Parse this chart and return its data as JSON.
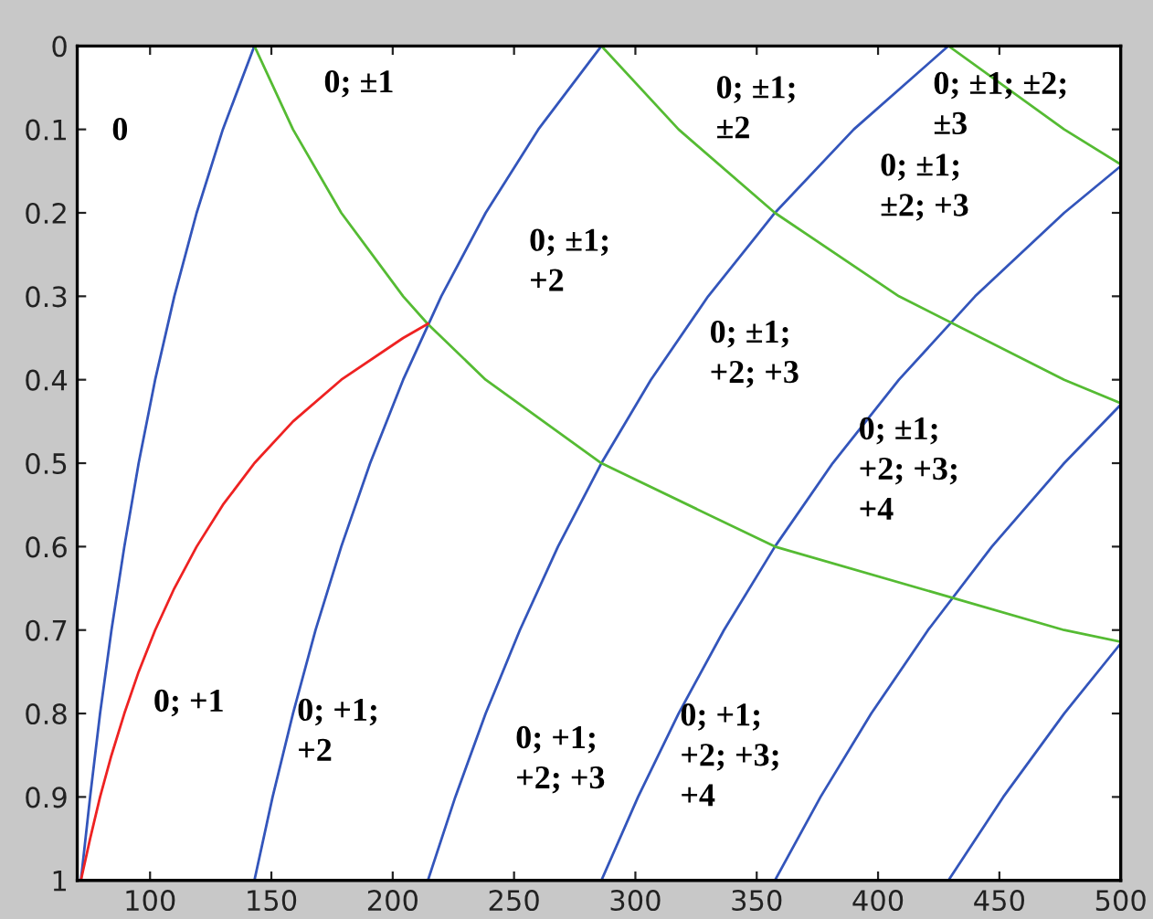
{
  "chart_data": {
    "type": "line",
    "xlim": [
      70,
      500
    ],
    "ylim": [
      1,
      0
    ],
    "xticks": [
      100,
      150,
      200,
      250,
      300,
      350,
      400,
      450,
      500
    ],
    "yticks": [
      0,
      0.1,
      0.2,
      0.3,
      0.4,
      0.5,
      0.6,
      0.7,
      0.8,
      0.9,
      1
    ],
    "grid": false,
    "marker": "none",
    "line_style": "solid",
    "series": [
      {
        "color": "#3355bb",
        "x": [
          143,
          130,
          119.2,
          110,
          102.1,
          95.3,
          89.4,
          84.1,
          79.4,
          75.3,
          71.5
        ],
        "values": [
          0,
          0.1,
          0.2,
          0.3,
          0.4,
          0.5,
          0.6,
          0.7,
          0.8,
          0.9,
          1
        ]
      },
      {
        "color": "#3355bb",
        "x": [
          286,
          260,
          238.3,
          220,
          204.3,
          190.7,
          178.8,
          168.2,
          158.9,
          150.5,
          143
        ],
        "values": [
          0,
          0.1,
          0.2,
          0.3,
          0.4,
          0.5,
          0.6,
          0.7,
          0.8,
          0.9,
          1
        ]
      },
      {
        "color": "#3355bb",
        "x": [
          429,
          390,
          357.5,
          330,
          306.4,
          286,
          268.1,
          252.4,
          238.3,
          225.8,
          214.5
        ],
        "values": [
          0,
          0.1,
          0.2,
          0.3,
          0.4,
          0.5,
          0.6,
          0.7,
          0.8,
          0.9,
          1
        ]
      },
      {
        "color": "#3355bb",
        "x": [
          500,
          476.7,
          440,
          408.6,
          381.3,
          357.5,
          336.5,
          317.8,
          301.1,
          286
        ],
        "values": [
          0.144,
          0.2,
          0.3,
          0.4,
          0.5,
          0.6,
          0.7,
          0.8,
          0.9,
          1
        ]
      },
      {
        "color": "#3355bb",
        "x": [
          500,
          476.7,
          446.9,
          420.6,
          397.2,
          376.3,
          357.5
        ],
        "values": [
          0.43,
          0.5,
          0.6,
          0.7,
          0.8,
          0.9,
          1
        ]
      },
      {
        "color": "#3355bb",
        "x": [
          500,
          476.7,
          451.6,
          429
        ],
        "values": [
          0.716,
          0.8,
          0.9,
          1
        ]
      },
      {
        "color": "#55bb33",
        "x": [
          143,
          158.9,
          178.8,
          204.3,
          214.4,
          238.3,
          286,
          357.5,
          476.7,
          500
        ],
        "values": [
          0,
          0.1,
          0.2,
          0.3,
          0.333,
          0.4,
          0.5,
          0.6,
          0.7,
          0.714
        ]
      },
      {
        "color": "#55bb33",
        "x": [
          286,
          317.8,
          357.5,
          408.6,
          476.7,
          500
        ],
        "values": [
          0,
          0.1,
          0.2,
          0.3,
          0.4,
          0.428
        ]
      },
      {
        "color": "#55bb33",
        "x": [
          429,
          476.7,
          500
        ],
        "values": [
          0,
          0.1,
          0.142
        ]
      },
      {
        "color": "#ee2222",
        "x": [
          71.5,
          75.3,
          79.4,
          84.1,
          89.4,
          95.3,
          102.1,
          110,
          119.2,
          130,
          143,
          158.9,
          178.8,
          204.3,
          214.5
        ],
        "values": [
          1,
          0.95,
          0.9,
          0.85,
          0.8,
          0.75,
          0.7,
          0.65,
          0.6,
          0.55,
          0.5,
          0.45,
          0.4,
          0.35,
          0.333
        ]
      }
    ],
    "annotations": [
      "0",
      "0; ±1",
      "0; ±1;\n±2",
      "0; ±1; ±2;\n±3",
      "0; ±1;\n±2; +3",
      "0; ±1;\n+2",
      "0; ±1;\n+2; +3",
      "0; ±1;\n+2; +3;\n+4",
      "0; +1",
      "0; +1;\n+2",
      "0; +1;\n+2; +3",
      "0; +1;\n+2; +3;\n+4"
    ]
  }
}
